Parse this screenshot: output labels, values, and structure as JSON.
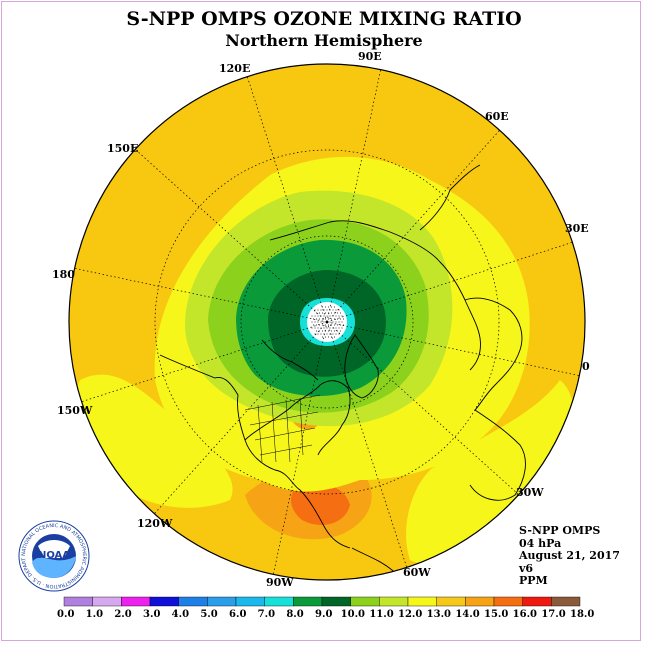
{
  "title": "S-NPP OMPS OZONE MIXING RATIO",
  "subtitle": "Northern Hemisphere",
  "longitude_labels": [
    "90E",
    "60E",
    "30E",
    "0",
    "30W",
    "60W",
    "90W",
    "120W",
    "150W",
    "180",
    "150E",
    "120E"
  ],
  "info": {
    "instrument": "S-NPP OMPS",
    "pressure": "04 hPa",
    "date": "August 21, 2017",
    "version": "v6",
    "units": "PPM"
  },
  "logo": {
    "text": "NOAA",
    "ring_text": "NATIONAL OCEANIC AND ATMOSPHERIC ADMINISTRATION · U.S. DEPARTMENT OF COMMERCE"
  },
  "colorbar": {
    "ticks": [
      "0.0",
      "1.0",
      "2.0",
      "3.0",
      "4.0",
      "5.0",
      "6.0",
      "7.0",
      "8.0",
      "9.0",
      "10.0",
      "11.0",
      "12.0",
      "13.0",
      "14.0",
      "15.0",
      "16.0",
      "17.0",
      "18.0"
    ],
    "colors": [
      "#b07fe0",
      "#d6a8ef",
      "#ee22ee",
      "#1010d8",
      "#1e80e6",
      "#2a9ee8",
      "#1cb8ec",
      "#16e0d8",
      "#0a9a3a",
      "#006628",
      "#8cd21c",
      "#c4e62a",
      "#f6f61a",
      "#f6c81a",
      "#f6a416",
      "#f66e12",
      "#ee1a10",
      "#8a5a3a"
    ]
  },
  "field": {
    "background_color": "#f8c810",
    "contours": [
      {
        "level": "13.0",
        "color": "#f6f61a"
      },
      {
        "level": "12.0",
        "color": "#c4e62a"
      },
      {
        "level": "11.0",
        "color": "#8cd21c"
      },
      {
        "level": "10.0",
        "color": "#0a9a3a"
      },
      {
        "level": "9.0",
        "color": "#006628"
      },
      {
        "level": "8.0",
        "color": "#16e0d8"
      },
      {
        "level": "pole",
        "color": "#ffffff"
      }
    ],
    "high_patches": [
      {
        "level": "14.0",
        "color": "#f6a416"
      },
      {
        "level": "15.0",
        "color": "#f66e12"
      }
    ]
  }
}
